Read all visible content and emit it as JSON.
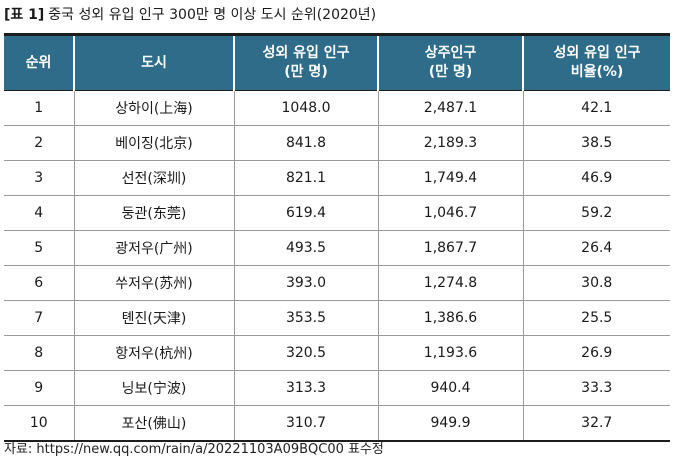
{
  "caption": {
    "tag": "[표 1]",
    "title": "중국 성외 유입 인구 300만 명 이상 도시 순위(2020년)"
  },
  "table": {
    "headers": [
      "순위",
      "도시",
      "성외 유입 인구\n(만 명)",
      "상주인구\n(만 명)",
      "성외 유입 인구\n비율(%)"
    ],
    "rows": [
      [
        "1",
        "상하이(上海)",
        "1048.0",
        "2,487.1",
        "42.1"
      ],
      [
        "2",
        "베이징(北京)",
        "841.8",
        "2,189.3",
        "38.5"
      ],
      [
        "3",
        "선전(深圳)",
        "821.1",
        "1,749.4",
        "46.9"
      ],
      [
        "4",
        "둥관(东莞)",
        "619.4",
        "1,046.7",
        "59.2"
      ],
      [
        "5",
        "광저우(广州)",
        "493.5",
        "1,867.7",
        "26.4"
      ],
      [
        "6",
        "쑤저우(苏州)",
        "393.0",
        "1,274.8",
        "30.8"
      ],
      [
        "7",
        "톈진(天津)",
        "353.5",
        "1,386.6",
        "25.5"
      ],
      [
        "8",
        "항저우(杭州)",
        "320.5",
        "1,193.6",
        "26.9"
      ],
      [
        "9",
        "닝보(宁波)",
        "313.3",
        "940.4",
        "33.3"
      ],
      [
        "10",
        "포산(佛山)",
        "310.7",
        "949.9",
        "32.7"
      ]
    ]
  },
  "source": "자료: https://new.qq.com/rain/a/20221103A09BQC00 표수정",
  "colors": {
    "header_bg": "#2e6c8a",
    "header_text": "#ffffff"
  }
}
